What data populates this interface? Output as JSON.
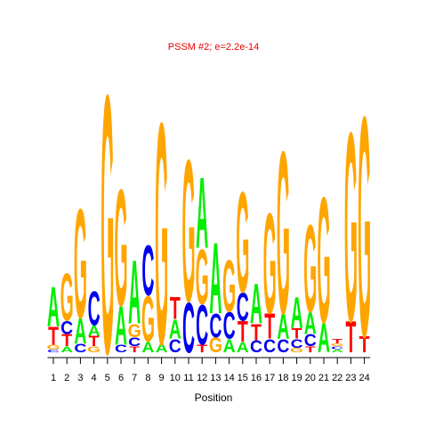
{
  "chart_data": {
    "type": "sequence-logo",
    "title": "PSSM #2; e=2.2e-14",
    "xlabel": "Position",
    "ylabel": "",
    "tick_labels": [
      "1",
      "2",
      "3",
      "4",
      "5",
      "6",
      "7",
      "8",
      "9",
      "10",
      "11",
      "12",
      "13",
      "14",
      "15",
      "16",
      "17",
      "18",
      "19",
      "20",
      "21",
      "22",
      "23",
      "24"
    ],
    "ylim": [
      0,
      2
    ],
    "y_axis_shown": false,
    "grid": false,
    "colors": {
      "A": "#00ee00",
      "C": "#0000ee",
      "G": "#ffa500",
      "T": "#ff0000",
      "title": "#ee0000"
    },
    "positions": [
      {
        "pos": 1,
        "letters": [
          {
            "base": "A",
            "bits": 0.27
          },
          {
            "base": "T",
            "bits": 0.12
          },
          {
            "base": "G",
            "bits": 0.03
          },
          {
            "base": "C",
            "bits": 0.02
          }
        ]
      },
      {
        "pos": 2,
        "letters": [
          {
            "base": "G",
            "bits": 0.32
          },
          {
            "base": "C",
            "bits": 0.09
          },
          {
            "base": "T",
            "bits": 0.08
          },
          {
            "base": "A",
            "bits": 0.04
          }
        ]
      },
      {
        "pos": 3,
        "letters": [
          {
            "base": "G",
            "bits": 0.74
          },
          {
            "base": "A",
            "bits": 0.17
          },
          {
            "base": "C",
            "bits": 0.06
          }
        ]
      },
      {
        "pos": 4,
        "letters": [
          {
            "base": "C",
            "bits": 0.23
          },
          {
            "base": "T",
            "bits": 0.07
          },
          {
            "base": "A",
            "bits": 0.07
          },
          {
            "base": "G",
            "bits": 0.04
          }
        ]
      },
      {
        "pos": 5,
        "letters": [
          {
            "base": "G",
            "bits": 1.75
          }
        ]
      },
      {
        "pos": 6,
        "letters": [
          {
            "base": "G",
            "bits": 0.79
          },
          {
            "base": "A",
            "bits": 0.26
          },
          {
            "base": "C",
            "bits": 0.05
          }
        ]
      },
      {
        "pos": 7,
        "letters": [
          {
            "base": "A",
            "bits": 0.43
          },
          {
            "base": "G",
            "bits": 0.09
          },
          {
            "base": "C",
            "bits": 0.06
          },
          {
            "base": "T",
            "bits": 0.04
          }
        ]
      },
      {
        "pos": 8,
        "letters": [
          {
            "base": "G",
            "bits": 0.31
          },
          {
            "base": "C",
            "bits": 0.34
          },
          {
            "base": "A",
            "bits": 0.07
          }
        ]
      },
      {
        "pos": 9,
        "letters": [
          {
            "base": "G",
            "bits": 1.5
          },
          {
            "base": "A",
            "bits": 0.06
          }
        ]
      },
      {
        "pos": 10,
        "letters": [
          {
            "base": "T",
            "bits": 0.15
          },
          {
            "base": "A",
            "bits": 0.13
          },
          {
            "base": "C",
            "bits": 0.09
          }
        ]
      },
      {
        "pos": 11,
        "letters": [
          {
            "base": "G",
            "bits": 0.96
          },
          {
            "base": "C",
            "bits": 0.34
          }
        ]
      },
      {
        "pos": 12,
        "letters": [
          {
            "base": "G",
            "bits": 0.37
          },
          {
            "base": "A",
            "bits": 0.48
          },
          {
            "base": "C",
            "bits": 0.27
          },
          {
            "base": "T",
            "bits": 0.05
          }
        ]
      },
      {
        "pos": 13,
        "letters": [
          {
            "base": "A",
            "bits": 0.48
          },
          {
            "base": "C",
            "bits": 0.16
          },
          {
            "base": "G",
            "bits": 0.1
          }
        ]
      },
      {
        "pos": 14,
        "letters": [
          {
            "base": "G",
            "bits": 0.35
          },
          {
            "base": "C",
            "bits": 0.18
          },
          {
            "base": "A",
            "bits": 0.09
          }
        ]
      },
      {
        "pos": 15,
        "letters": [
          {
            "base": "G",
            "bits": 0.68
          },
          {
            "base": "C",
            "bits": 0.19
          },
          {
            "base": "T",
            "bits": 0.14
          },
          {
            "base": "A",
            "bits": 0.07
          }
        ]
      },
      {
        "pos": 16,
        "letters": [
          {
            "base": "A",
            "bits": 0.27
          },
          {
            "base": "T",
            "bits": 0.11
          },
          {
            "base": "C",
            "bits": 0.08
          }
        ]
      },
      {
        "pos": 17,
        "letters": [
          {
            "base": "G",
            "bits": 0.68
          },
          {
            "base": "T",
            "bits": 0.17
          },
          {
            "base": "C",
            "bits": 0.09
          }
        ]
      },
      {
        "pos": 18,
        "letters": [
          {
            "base": "G",
            "bits": 1.1
          },
          {
            "base": "A",
            "bits": 0.17
          },
          {
            "base": "C",
            "bits": 0.09
          }
        ]
      },
      {
        "pos": 19,
        "letters": [
          {
            "base": "A",
            "bits": 0.21
          },
          {
            "base": "T",
            "bits": 0.07
          },
          {
            "base": "C",
            "bits": 0.06
          },
          {
            "base": "G",
            "bits": 0.03
          }
        ]
      },
      {
        "pos": 20,
        "letters": [
          {
            "base": "G",
            "bits": 0.59
          },
          {
            "base": "A",
            "bits": 0.15
          },
          {
            "base": "C",
            "bits": 0.08
          },
          {
            "base": "T",
            "bits": 0.04
          }
        ]
      },
      {
        "pos": 21,
        "letters": [
          {
            "base": "G",
            "bits": 0.85
          },
          {
            "base": "A",
            "bits": 0.2
          }
        ]
      },
      {
        "pos": 22,
        "letters": [
          {
            "base": "T",
            "bits": 0.03
          },
          {
            "base": "A",
            "bits": 0.02
          },
          {
            "base": "C",
            "bits": 0.02
          },
          {
            "base": "G",
            "bits": 0.02
          }
        ]
      },
      {
        "pos": 23,
        "letters": [
          {
            "base": "G",
            "bits": 1.28
          },
          {
            "base": "T",
            "bits": 0.21
          }
        ]
      },
      {
        "pos": 24,
        "letters": [
          {
            "base": "G",
            "bits": 1.49
          },
          {
            "base": "T",
            "bits": 0.11
          }
        ]
      }
    ]
  }
}
